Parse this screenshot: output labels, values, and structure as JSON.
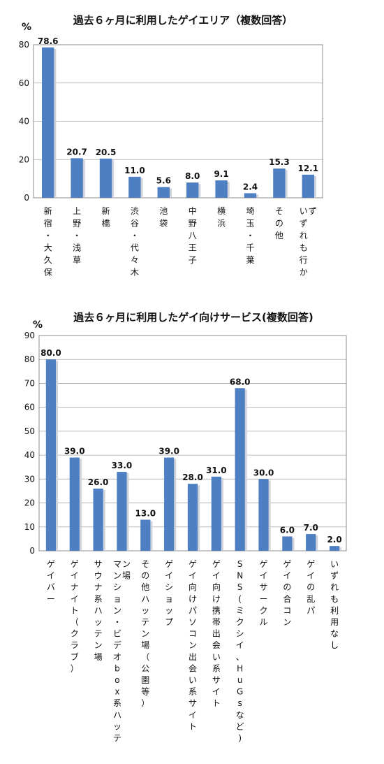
{
  "chart_data": [
    {
      "type": "bar",
      "title": "過去６ヶ月に利用したゲイエリア（複数回答）",
      "unit": "%",
      "categories": [
        "新宿・大久保",
        "上野・浅草",
        "新橋",
        "渋谷・代々木",
        "池袋",
        "中野八王子",
        "横浜",
        "埼玉・千葉",
        "その他",
        "いずれも行かず"
      ],
      "values": [
        78.6,
        20.7,
        20.5,
        11.0,
        5.6,
        8.0,
        9.1,
        2.4,
        15.3,
        12.1
      ],
      "value_labels": [
        "78.6",
        "20.7",
        "20.5",
        "11.0",
        "5.6",
        "8.0",
        "9.1",
        "2.4",
        "15.3",
        "12.1"
      ],
      "yticks": [
        "0",
        "20",
        "40",
        "60",
        "80"
      ],
      "ylim": [
        0,
        80
      ],
      "grid": true,
      "color": "#4f7fc3"
    },
    {
      "type": "bar",
      "title": "過去６ヶ月に利用したゲイ向けサービス(複数回答)",
      "unit": "%",
      "categories": [
        "ゲイバー",
        "ゲイナイト（クラブ）",
        "サウナ系ハッテン場",
        "マンション・ビデオbox系ハッテン場",
        "その他ハッテン場（公園等）",
        "ゲイショップ",
        "ゲイ向けパソコン出会い系サイト",
        "ゲイ向け携帯出会い系サイト",
        "SNS(ミクシイ、HuGsなど)",
        "ゲイサークル",
        "ゲイの合コン",
        "ゲイの乱パ",
        "いずれも利用なし"
      ],
      "values": [
        80.0,
        39.0,
        26.0,
        33.0,
        13.0,
        39.0,
        28.0,
        31.0,
        68.0,
        30.0,
        6.0,
        7.0,
        2.0
      ],
      "value_labels": [
        "80.0",
        "39.0",
        "26.0",
        "33.0",
        "13.0",
        "39.0",
        "28.0",
        "31.0",
        "68.0",
        "30.0",
        "6.0",
        "7.0",
        "2.0"
      ],
      "yticks": [
        "0",
        "10",
        "20",
        "30",
        "40",
        "50",
        "60",
        "70",
        "80",
        "90"
      ],
      "ylim": [
        0,
        90
      ],
      "grid": true,
      "color": "#4f7fc3"
    }
  ]
}
